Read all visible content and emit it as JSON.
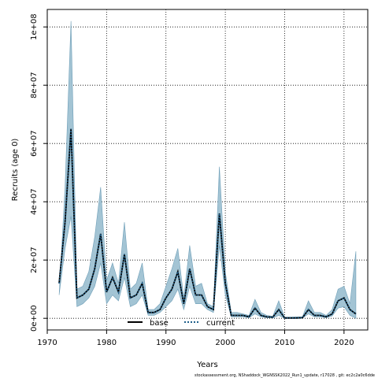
{
  "chart_data": {
    "type": "area",
    "xlabel": "Years",
    "ylabel": "Recruits (age 0)",
    "xlim": [
      1970,
      2024
    ],
    "ylim": [
      -4000000,
      106000000
    ],
    "x_ticks": [
      1970,
      1980,
      1990,
      2000,
      2010,
      2020
    ],
    "x_tick_labels": [
      "1970",
      "1980",
      "1990",
      "2000",
      "2010",
      "2020"
    ],
    "y_ticks": [
      0,
      20000000,
      40000000,
      60000000,
      80000000,
      100000000
    ],
    "y_tick_labels": [
      "0e+00",
      "2e+07",
      "4e+07",
      "6e+07",
      "8e+07",
      "1e+08"
    ],
    "grid": true,
    "legend_position": "bottom-center",
    "band_color": "#a3c4d4",
    "band_edge_color": "#6f9fb8",
    "base_color": "#000000",
    "current_color": "#1f5f8b",
    "years": [
      1972,
      1973,
      1974,
      1975,
      1976,
      1977,
      1978,
      1979,
      1980,
      1981,
      1982,
      1983,
      1984,
      1985,
      1986,
      1987,
      1988,
      1989,
      1990,
      1991,
      1992,
      1993,
      1994,
      1995,
      1996,
      1997,
      1998,
      1999,
      2000,
      2001,
      2002,
      2003,
      2004,
      2005,
      2006,
      2007,
      2008,
      2009,
      2010,
      2011,
      2012,
      2013,
      2014,
      2015,
      2016,
      2017,
      2018,
      2019,
      2020,
      2021,
      2022
    ],
    "series": [
      {
        "name": "base",
        "style": "solid",
        "values": [
          12000000,
          33000000,
          65000000,
          7000000,
          8000000,
          10000000,
          17000000,
          29000000,
          9000000,
          14000000,
          9000000,
          22000000,
          7000000,
          8000000,
          12000000,
          2000000,
          2000000,
          3000000,
          7000000,
          10000000,
          16000000,
          5000000,
          17000000,
          8000000,
          8000000,
          4000000,
          3000000,
          36000000,
          12000000,
          1000000,
          1000000,
          1000000,
          500000,
          3500000,
          1000000,
          500000,
          400000,
          3000000,
          100000,
          100000,
          100000,
          200000,
          3000000,
          1000000,
          1000000,
          500000,
          1500000,
          6000000,
          7000000,
          3000000,
          1500000
        ]
      },
      {
        "name": "current",
        "style": "dotted",
        "values": [
          12000000,
          33000000,
          65000000,
          7000000,
          8000000,
          10000000,
          17000000,
          29000000,
          9000000,
          14000000,
          9000000,
          22000000,
          7000000,
          8000000,
          12000000,
          2000000,
          2000000,
          3000000,
          7000000,
          10000000,
          16000000,
          5000000,
          17000000,
          8000000,
          8000000,
          4000000,
          3000000,
          36000000,
          12000000,
          1000000,
          1000000,
          1000000,
          500000,
          3500000,
          1000000,
          500000,
          400000,
          3000000,
          100000,
          100000,
          100000,
          200000,
          3000000,
          1000000,
          1000000,
          500000,
          1500000,
          6000000,
          7000000,
          3000000,
          1500000
        ]
      }
    ],
    "upper": [
      8000000,
      45000000,
      102000000,
      10000000,
      11000000,
      16000000,
      28000000,
      45000000,
      13000000,
      19000000,
      12000000,
      33000000,
      10000000,
      12000000,
      19000000,
      3000000,
      3000000,
      5000000,
      11000000,
      17000000,
      24000000,
      7000000,
      25000000,
      11000000,
      12000000,
      5000000,
      4000000,
      52000000,
      16000000,
      2000000,
      2000000,
      1500000,
      1000000,
      6500000,
      2000000,
      1000000,
      700000,
      6000000,
      400000,
      400000,
      500000,
      500000,
      6000000,
      2000000,
      2000000,
      1000000,
      3000000,
      10000000,
      11000000,
      5000000,
      23000000
    ],
    "lower": [
      8000000,
      24000000,
      35000000,
      4000000,
      5000000,
      7000000,
      11000000,
      19000000,
      5000000,
      8000000,
      6000000,
      14000000,
      4000000,
      5000000,
      8000000,
      1000000,
      1000000,
      2000000,
      4000000,
      6000000,
      10000000,
      3000000,
      11000000,
      5000000,
      5000000,
      3000000,
      2000000,
      25000000,
      8000000,
      500000,
      500000,
      500000,
      200000,
      1500000,
      500000,
      200000,
      100000,
      1000000,
      0,
      0,
      0,
      50000,
      1500000,
      500000,
      500000,
      200000,
      800000,
      3500000,
      4000000,
      1000000,
      0
    ]
  },
  "footnote": "stockassessment.org, NShaddock_WGNSSK2022_Run1_update, r17028 , git: ec2c2a0c6dde"
}
